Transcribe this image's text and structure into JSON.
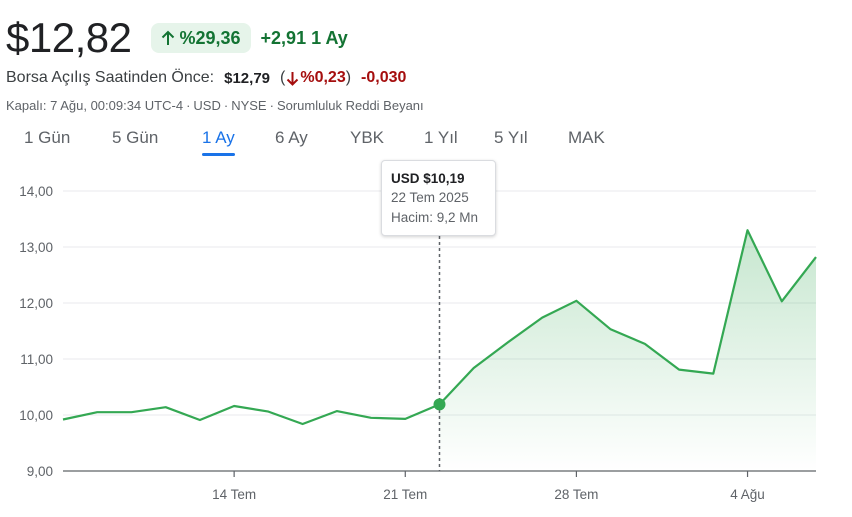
{
  "quote": {
    "price": "$12,82",
    "change_pct": "%29,36",
    "change_abs": "+2,91",
    "change_period": "1 Ay",
    "premarket_label": "Borsa Açılış Saatinden Önce:",
    "premarket_price": "$12,79",
    "premarket_pct": "%0,23",
    "premarket_abs": "-0,030",
    "meta": {
      "closed": "Kapalı: 7 Ağu, 00:09:34 UTC-4",
      "currency": "USD",
      "exchange": "NYSE",
      "disclaimer": "Sorumluluk Reddi Beyanı"
    }
  },
  "tabs": [
    {
      "label": "1 Gün"
    },
    {
      "label": "5 Gün"
    },
    {
      "label": "1 Ay"
    },
    {
      "label": "6 Ay"
    },
    {
      "label": "YBK"
    },
    {
      "label": "1 Yıl"
    },
    {
      "label": "5 Yıl"
    },
    {
      "label": "MAK"
    }
  ],
  "active_tab": "1 Ay",
  "colors": {
    "up": "#137333",
    "down": "#a50e0e",
    "line": "#34a853",
    "accent": "#1a73e8"
  },
  "tooltip": {
    "price": "USD $10,19",
    "date": "22 Tem 2025",
    "volume": "Hacim: 9,2 Mn"
  },
  "chart_data": {
    "type": "area",
    "ylim": [
      9,
      14
    ],
    "yticks": [
      "14,00",
      "13,00",
      "12,00",
      "11,00",
      "10,00",
      "9,00"
    ],
    "ytick_values": [
      14,
      13,
      12,
      11,
      10,
      9
    ],
    "xtick_labels": [
      "14 Tem",
      "21 Tem",
      "28 Tem",
      "4 Ağu"
    ],
    "xtick_dates": [
      "2025-07-14",
      "2025-07-21",
      "2025-07-28",
      "2025-08-04"
    ],
    "grid": true,
    "series": [
      {
        "x": [
          "2025-07-07",
          "2025-07-08",
          "2025-07-09",
          "2025-07-10",
          "2025-07-11",
          "2025-07-14",
          "2025-07-15",
          "2025-07-16",
          "2025-07-17",
          "2025-07-18",
          "2025-07-21",
          "2025-07-22",
          "2025-07-23",
          "2025-07-24",
          "2025-07-25",
          "2025-07-28",
          "2025-07-29",
          "2025-07-30",
          "2025-07-31",
          "2025-08-01",
          "2025-08-04",
          "2025-08-05",
          "2025-08-06"
        ],
        "values": [
          9.92,
          10.05,
          10.05,
          10.14,
          9.91,
          10.16,
          10.06,
          9.84,
          10.07,
          9.95,
          9.93,
          10.19,
          10.84,
          11.3,
          11.74,
          12.04,
          11.53,
          11.27,
          10.81,
          10.74,
          13.3,
          12.03,
          12.82
        ]
      }
    ],
    "highlight": {
      "x": "2025-07-22",
      "value": 10.19
    }
  }
}
